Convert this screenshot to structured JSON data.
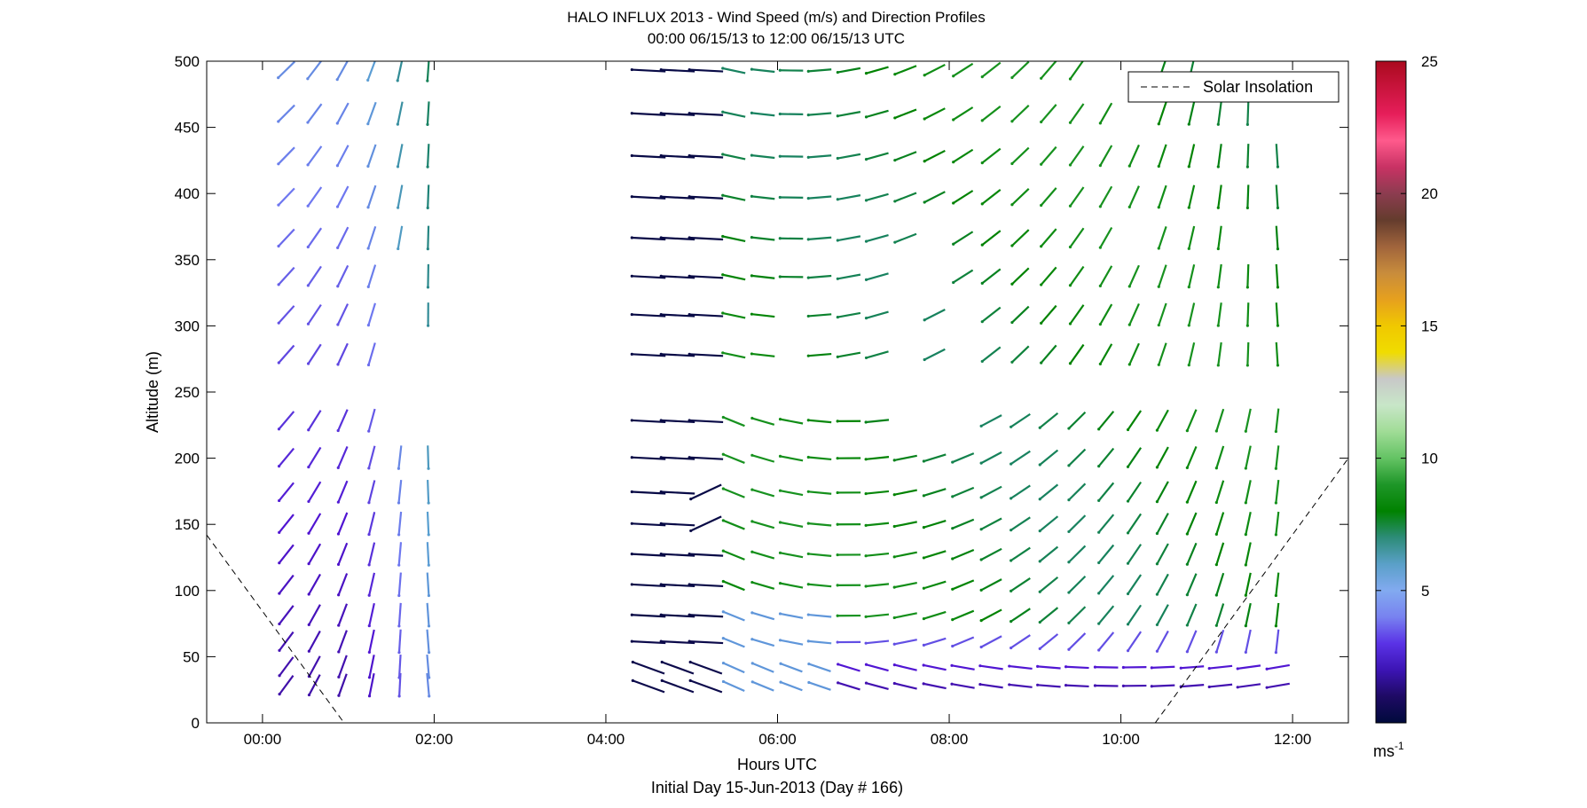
{
  "chart_data": {
    "type": "quiver",
    "title": "HALO INFLUX 2013 - Wind Speed (m/s) and Direction Profiles",
    "subtitle": "00:00 06/15/13 to 12:00 06/15/13  UTC",
    "xlabel": "Hours UTC",
    "xlabel2": "Initial Day 15-Jun-2013 (Day # 166)",
    "ylabel": "Altitude (m)",
    "xlim_hours": [
      -0.65,
      12.65
    ],
    "ylim": [
      0,
      500
    ],
    "xticks": [
      {
        "value": 0,
        "label": "00:00"
      },
      {
        "value": 2,
        "label": "02:00"
      },
      {
        "value": 4,
        "label": "04:00"
      },
      {
        "value": 6,
        "label": "06:00"
      },
      {
        "value": 8,
        "label": "08:00"
      },
      {
        "value": 10,
        "label": "10:00"
      },
      {
        "value": 12,
        "label": "12:00"
      }
    ],
    "yticks": [
      0,
      50,
      100,
      150,
      200,
      250,
      300,
      350,
      400,
      450,
      500
    ],
    "grid": false,
    "legend": {
      "placement": "top-right",
      "entries": [
        "Solar Insolation"
      ]
    },
    "colorbar": {
      "label": "ms",
      "label_sup": "-1",
      "range": [
        0,
        25
      ],
      "ticks": [
        5,
        10,
        15,
        20,
        25
      ],
      "colors": [
        "#000a3c",
        "#1e0a64",
        "#3c14b4",
        "#5a32e6",
        "#7882f0",
        "#82aaf0",
        "#5aa0c8",
        "#2d8c78",
        "#008200",
        "#1e9628",
        "#64c364",
        "#a0dc96",
        "#c8e6c8",
        "#c8c8c8",
        "#f0dc00",
        "#f0c800",
        "#e6a01e",
        "#c88c3c",
        "#a0643c",
        "#643c2d",
        "#8c3c50",
        "#c83264",
        "#ff5a8c",
        "#e61e5a",
        "#c8143c",
        "#aa0a1e"
      ]
    },
    "solar_insolation": [
      {
        "x": -0.65,
        "y": 142
      },
      {
        "x": 0.95,
        "y": 0
      },
      {
        "x": 10.4,
        "y": 0
      },
      {
        "x": 12.65,
        "y": 200
      }
    ],
    "barbs": {
      "x_hours": [
        0.27,
        0.6,
        0.93,
        1.27,
        1.6,
        1.93,
        4.48,
        4.82,
        5.15,
        5.48,
        5.82,
        6.15,
        6.48,
        6.82,
        7.15,
        7.48,
        7.82,
        8.15,
        8.48,
        8.82,
        9.15,
        9.48,
        9.82,
        10.15,
        10.48,
        10.82,
        11.15,
        11.48,
        11.82
      ],
      "altitudes": [
        28,
        42,
        61,
        81,
        104,
        127,
        150,
        174,
        200,
        228,
        278,
        308,
        337,
        366,
        397,
        428,
        460,
        493
      ],
      "note": "barb vectors (speed m/s, direction) per profile"
    }
  }
}
